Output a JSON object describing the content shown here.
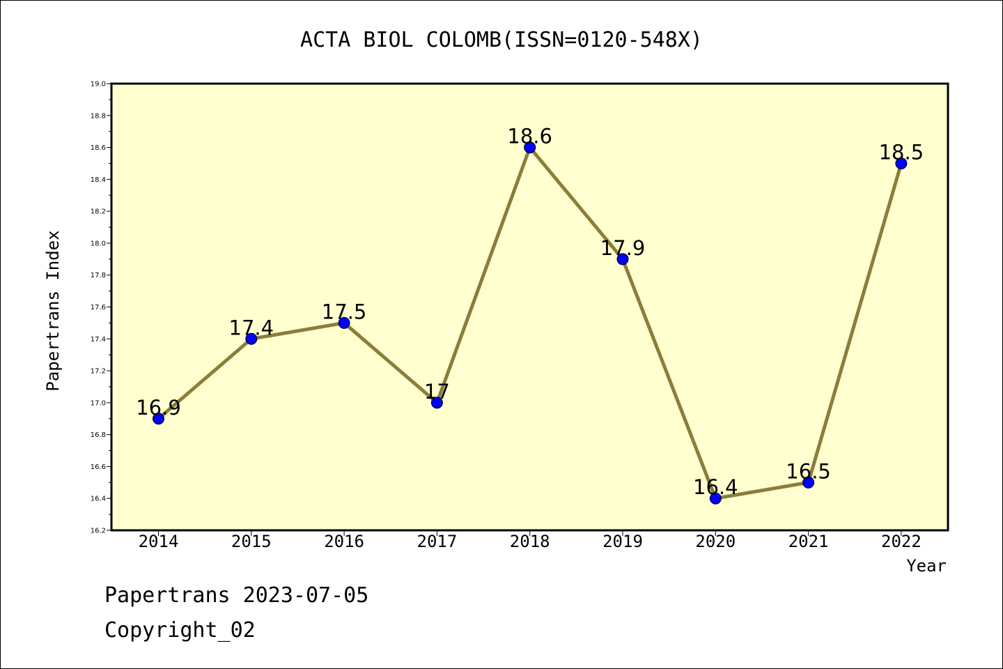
{
  "chart_data": {
    "type": "line",
    "title": "ACTA BIOL COLOMB(ISSN=0120-548X)",
    "xlabel": "Year",
    "ylabel": "Papertrans Index",
    "x": [
      "2014",
      "2015",
      "2016",
      "2017",
      "2018",
      "2019",
      "2020",
      "2021",
      "2022"
    ],
    "series": [
      {
        "values": [
          16.9,
          17.4,
          17.5,
          17.0,
          18.6,
          17.9,
          16.4,
          16.5,
          18.5
        ],
        "labels": [
          "16.9",
          "17.4",
          "17.5",
          "17",
          "18.6",
          "17.9",
          "16.4",
          "16.5",
          "18.5"
        ]
      }
    ],
    "ylim": [
      16.2,
      19.0
    ],
    "yticks": [
      "16.2",
      "16.4",
      "16.6",
      "16.8",
      "17.0",
      "17.2",
      "17.4",
      "17.6",
      "17.8",
      "18.0",
      "18.2",
      "18.4",
      "18.6",
      "18.8",
      "19.0"
    ],
    "grid": false,
    "colors": {
      "plot_background": "#ffffd0",
      "line": "#8b7d3a",
      "marker": "#0000ff"
    }
  },
  "footer": {
    "date_text": "Papertrans 2023-07-05",
    "copyright_text": "Copyright_02"
  }
}
